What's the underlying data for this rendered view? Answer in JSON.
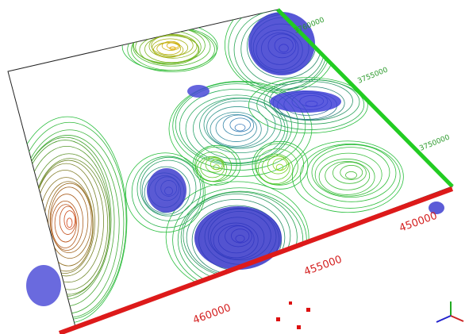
{
  "scene": {
    "northing_labels": [
      "3760000",
      "3755000",
      "3750000"
    ],
    "easting_labels": [
      "450000",
      "455000",
      "460000"
    ]
  }
}
